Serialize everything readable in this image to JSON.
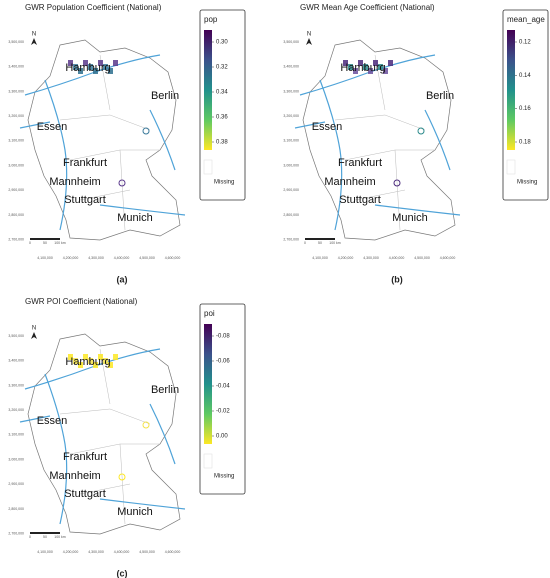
{
  "panels": [
    {
      "title": "GWR Population Coefficient (National)",
      "legend": {
        "title": "pop",
        "ticks": [
          "0.30",
          "0.32",
          "0.34",
          "0.36",
          "0.38"
        ],
        "missing": "Missing"
      },
      "north": "N",
      "cities": [
        "Hamburg",
        "Berlin",
        "Essen",
        "Frankfurt",
        "Mannheim",
        "Stuttgart",
        "Munich"
      ],
      "yticks": [
        "3,500,000",
        "3,400,000",
        "3,300,000",
        "3,200,000",
        "3,100,000",
        "3,000,000",
        "2,900,000",
        "2,800,000",
        "2,700,000"
      ],
      "xticks": [
        "4,100,000",
        "4,200,000",
        "4,300,000",
        "4,400,000",
        "4,500,000",
        "4,600,000"
      ],
      "scale": [
        "0",
        "50",
        "100 km"
      ],
      "caption": "(a)"
    },
    {
      "title": "GWR Mean Age Coefficient (National)",
      "legend": {
        "title": "mean_age",
        "ticks": [
          "0.12",
          "0.14",
          "0.16",
          "0.18"
        ],
        "missing": "Missing"
      },
      "north": "N",
      "cities": [
        "Hamburg",
        "Berlin",
        "Essen",
        "Frankfurt",
        "Mannheim",
        "Stuttgart",
        "Munich"
      ],
      "yticks": [
        "3,500,000",
        "3,400,000",
        "3,300,000",
        "3,200,000",
        "3,100,000",
        "3,000,000",
        "2,900,000",
        "2,800,000",
        "2,700,000"
      ],
      "xticks": [
        "4,100,000",
        "4,200,000",
        "4,300,000",
        "4,400,000",
        "4,500,000",
        "4,600,000"
      ],
      "scale": [
        "0",
        "50",
        "100 km"
      ],
      "caption": "(b)"
    },
    {
      "title": "GWR POI Coefficient (National)",
      "legend": {
        "title": "poi",
        "ticks": [
          "-0.08",
          "-0.06",
          "-0.04",
          "-0.02",
          "0.00"
        ],
        "missing": "Missing"
      },
      "north": "N",
      "cities": [
        "Hamburg",
        "Berlin",
        "Essen",
        "Frankfurt",
        "Mannheim",
        "Stuttgart",
        "Munich"
      ],
      "yticks": [
        "3,500,000",
        "3,400,000",
        "3,300,000",
        "3,200,000",
        "3,100,000",
        "3,000,000",
        "2,900,000",
        "2,800,000",
        "2,700,000"
      ],
      "xticks": [
        "4,100,000",
        "4,200,000",
        "4,300,000",
        "4,400,000",
        "4,500,000",
        "4,600,000"
      ],
      "scale": [
        "0",
        "50",
        "100 km"
      ],
      "caption": "(c)"
    }
  ]
}
